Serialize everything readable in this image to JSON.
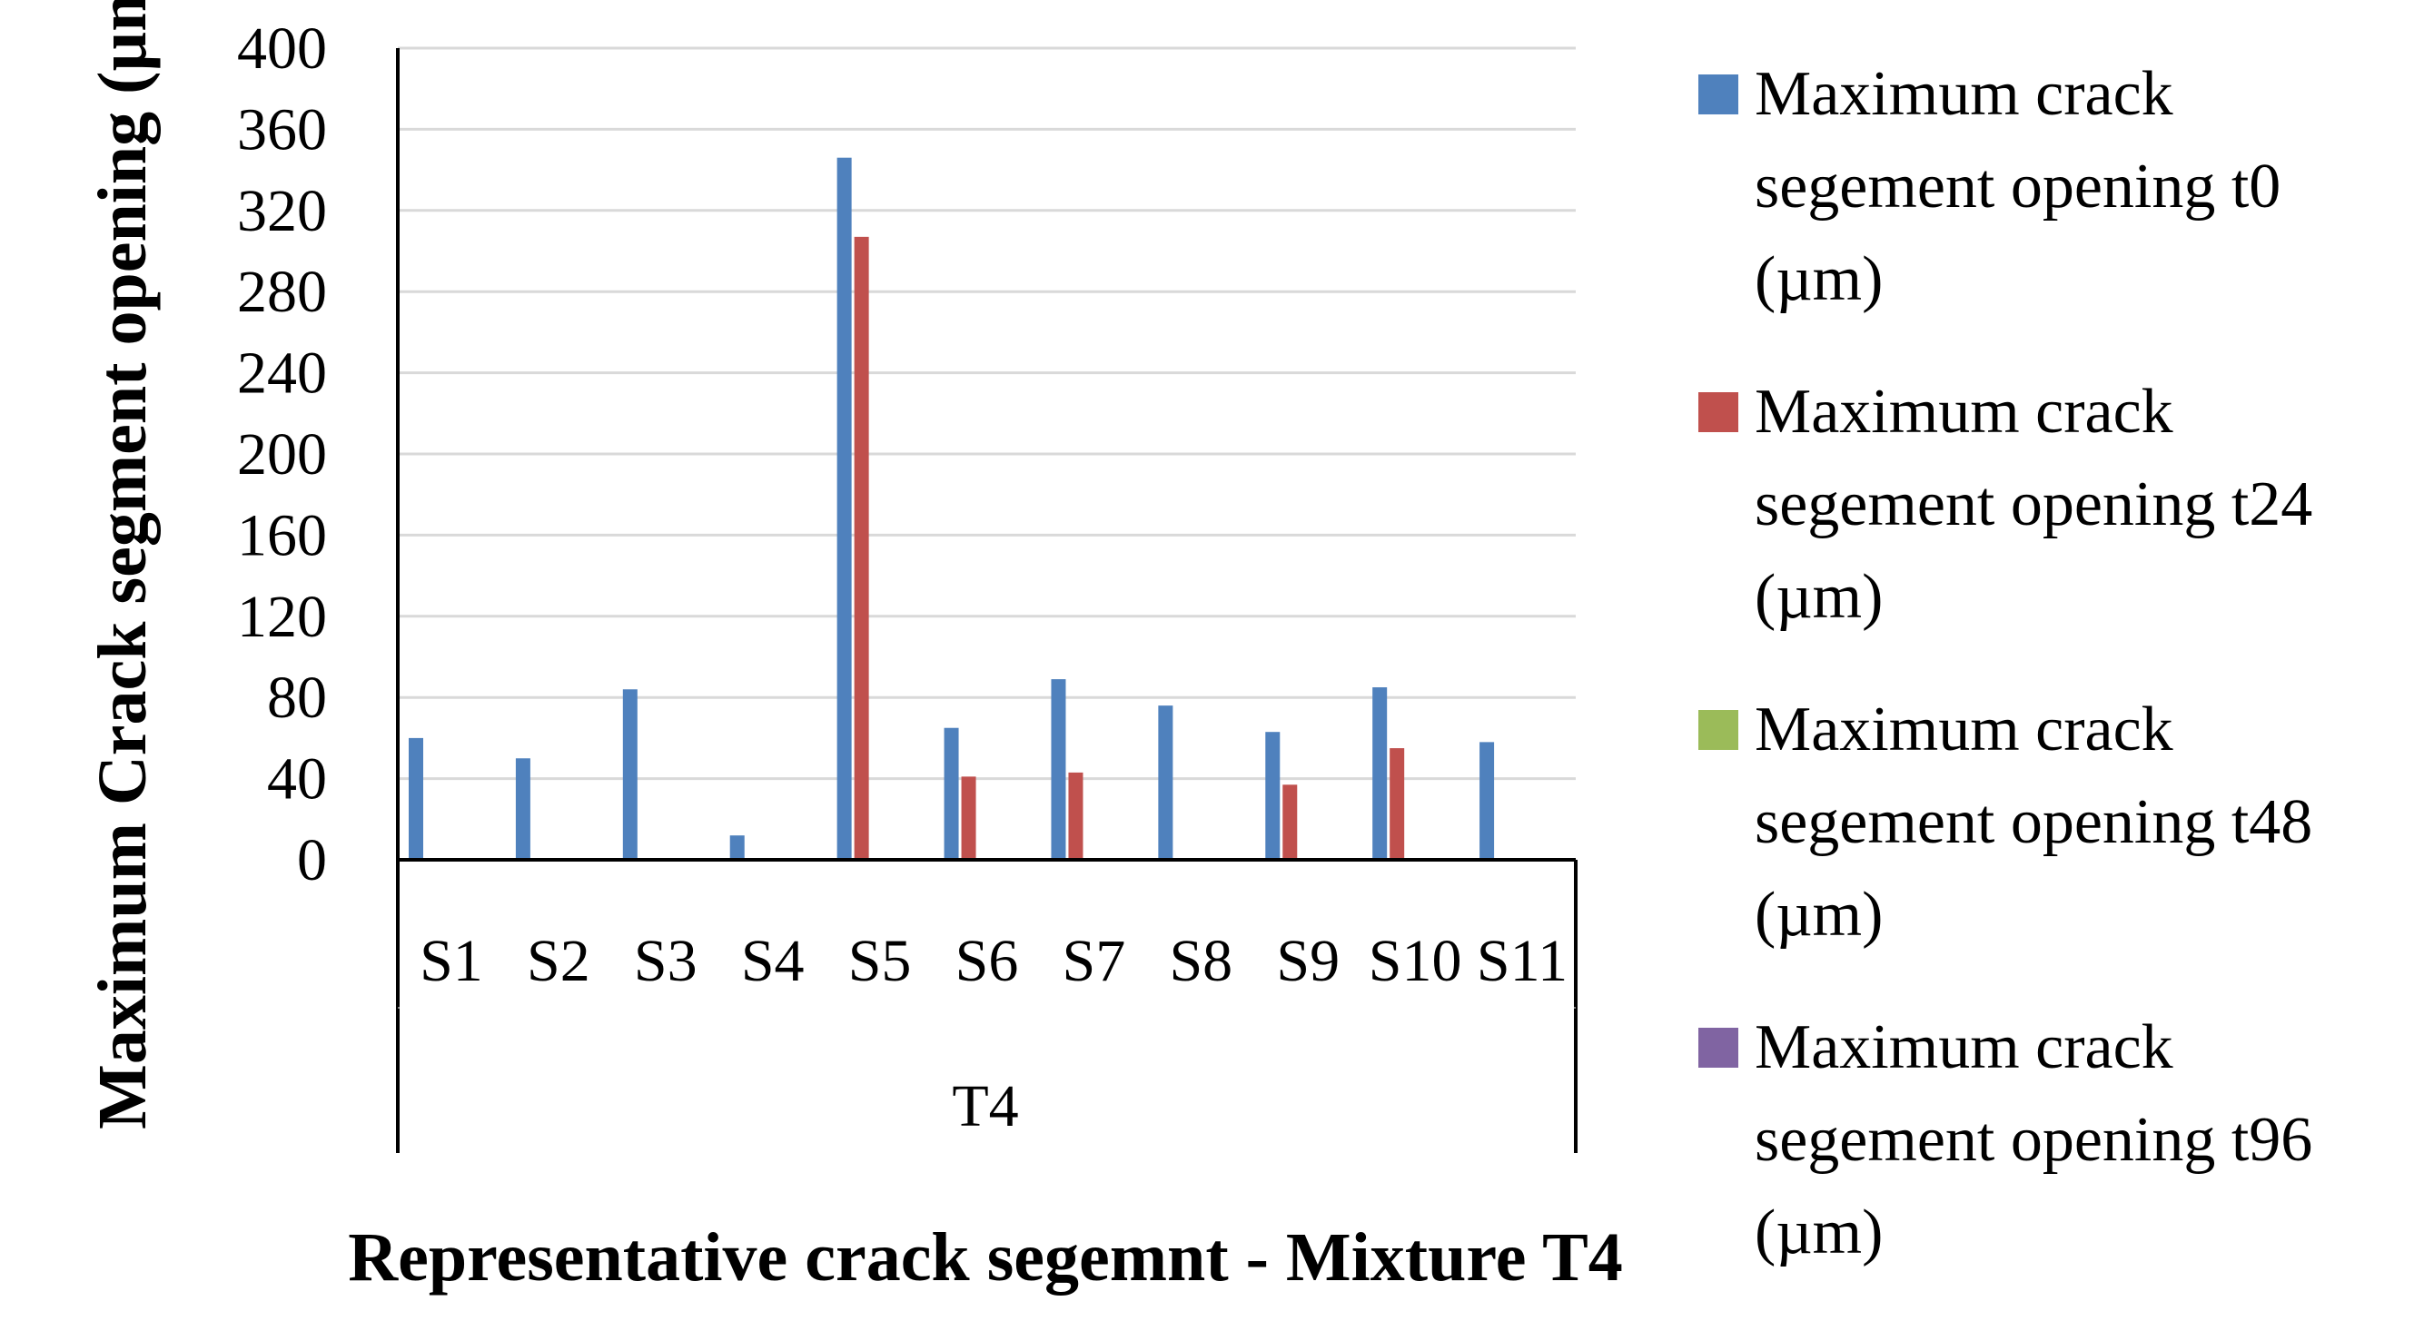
{
  "chart_data": {
    "type": "bar",
    "title": "",
    "xlabel": "Representative crack segemnt - Mixture T4",
    "ylabel": "Maximum Crack segment opening (µm)",
    "group_label": "T4",
    "categories": [
      "S1",
      "S2",
      "S3",
      "S4",
      "S5",
      "S6",
      "S7",
      "S8",
      "S9",
      "S10",
      "S11"
    ],
    "ylim": [
      0,
      400
    ],
    "yticks": [
      0,
      40,
      80,
      120,
      160,
      200,
      240,
      280,
      320,
      360,
      400
    ],
    "grid": true,
    "legend_position": "right",
    "series": [
      {
        "name": "Maximum crack segement opening t0 (µm)",
        "legend_lines": [
          "Maximum crack",
          "segement opening t0",
          "(µm)"
        ],
        "color": "#4f81bd",
        "values": [
          60,
          50,
          84,
          12,
          346,
          65,
          89,
          76,
          63,
          85,
          58
        ]
      },
      {
        "name": "Maximum crack segement opening t24 (µm)",
        "legend_lines": [
          "Maximum crack",
          "segement opening t24",
          "(µm)"
        ],
        "color": "#c0504d",
        "values": [
          0,
          0,
          0,
          0,
          307,
          41,
          43,
          0,
          37,
          55,
          0
        ]
      },
      {
        "name": "Maximum crack segement opening t48 (µm)",
        "legend_lines": [
          "Maximum crack",
          "segement opening t48",
          "(µm)"
        ],
        "color": "#9bbb59",
        "values": [
          0,
          0,
          0,
          0,
          0,
          0,
          0,
          0,
          0,
          0,
          0
        ]
      },
      {
        "name": "Maximum crack segement opening t96 (µm)",
        "legend_lines": [
          "Maximum crack",
          "segement opening t96",
          "(µm)"
        ],
        "color": "#8064a2",
        "values": [
          0,
          0,
          0,
          0,
          0,
          0,
          0,
          0,
          0,
          0,
          0
        ]
      }
    ]
  }
}
